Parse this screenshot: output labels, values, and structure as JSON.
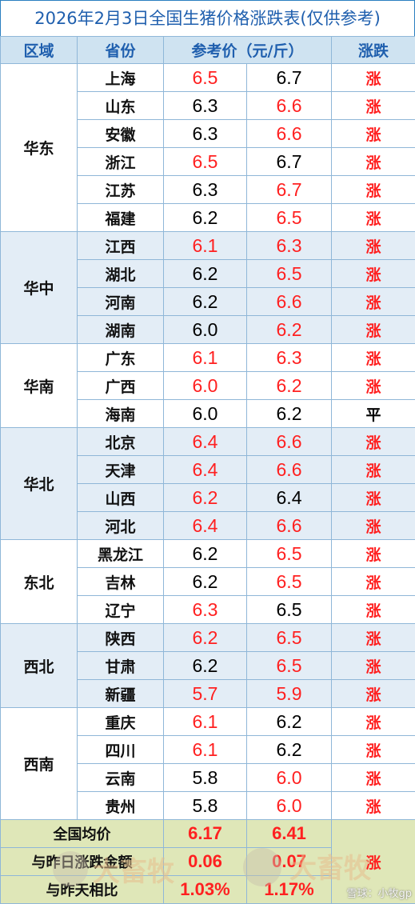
{
  "title": "2026年2月3日全国生猪价格涨跌表(仅供参考)",
  "headers": {
    "region": "区域",
    "province": "省份",
    "price": "参考价（元/斤）",
    "change": "涨跌"
  },
  "colors": {
    "rise": "#ff2020",
    "flat": "#000000",
    "header_bg": "#cfe3f1",
    "title": "#1f5fae",
    "summary_bg": "#dfe7b8"
  },
  "groups": [
    {
      "region": "华东",
      "rows": [
        {
          "province": "上海",
          "prev": "6.5",
          "prev_red": true,
          "curr": "6.7",
          "curr_red": false,
          "change": "涨"
        },
        {
          "province": "山东",
          "prev": "6.3",
          "prev_red": false,
          "curr": "6.6",
          "curr_red": true,
          "change": "涨"
        },
        {
          "province": "安徽",
          "prev": "6.3",
          "prev_red": false,
          "curr": "6.6",
          "curr_red": true,
          "change": "涨"
        },
        {
          "province": "浙江",
          "prev": "6.5",
          "prev_red": true,
          "curr": "6.7",
          "curr_red": false,
          "change": "涨"
        },
        {
          "province": "江苏",
          "prev": "6.3",
          "prev_red": false,
          "curr": "6.7",
          "curr_red": true,
          "change": "涨"
        },
        {
          "province": "福建",
          "prev": "6.2",
          "prev_red": false,
          "curr": "6.5",
          "curr_red": true,
          "change": "涨"
        }
      ]
    },
    {
      "region": "华中",
      "rows": [
        {
          "province": "江西",
          "prev": "6.1",
          "prev_red": true,
          "curr": "6.3",
          "curr_red": true,
          "change": "涨"
        },
        {
          "province": "湖北",
          "prev": "6.2",
          "prev_red": false,
          "curr": "6.5",
          "curr_red": true,
          "change": "涨"
        },
        {
          "province": "河南",
          "prev": "6.2",
          "prev_red": false,
          "curr": "6.6",
          "curr_red": true,
          "change": "涨"
        },
        {
          "province": "湖南",
          "prev": "6.0",
          "prev_red": false,
          "curr": "6.2",
          "curr_red": true,
          "change": "涨"
        }
      ]
    },
    {
      "region": "华南",
      "rows": [
        {
          "province": "广东",
          "prev": "6.1",
          "prev_red": true,
          "curr": "6.3",
          "curr_red": true,
          "change": "涨"
        },
        {
          "province": "广西",
          "prev": "6.0",
          "prev_red": true,
          "curr": "6.2",
          "curr_red": true,
          "change": "涨"
        },
        {
          "province": "海南",
          "prev": "6.0",
          "prev_red": false,
          "curr": "6.2",
          "curr_red": false,
          "change": "平"
        }
      ]
    },
    {
      "region": "华北",
      "rows": [
        {
          "province": "北京",
          "prev": "6.4",
          "prev_red": true,
          "curr": "6.6",
          "curr_red": true,
          "change": "涨"
        },
        {
          "province": "天津",
          "prev": "6.4",
          "prev_red": true,
          "curr": "6.6",
          "curr_red": true,
          "change": "涨"
        },
        {
          "province": "山西",
          "prev": "6.2",
          "prev_red": true,
          "curr": "6.4",
          "curr_red": false,
          "change": "涨"
        },
        {
          "province": "河北",
          "prev": "6.4",
          "prev_red": true,
          "curr": "6.6",
          "curr_red": true,
          "change": "涨"
        }
      ]
    },
    {
      "region": "东北",
      "rows": [
        {
          "province": "黑龙江",
          "prev": "6.2",
          "prev_red": false,
          "curr": "6.5",
          "curr_red": true,
          "change": "涨"
        },
        {
          "province": "吉林",
          "prev": "6.2",
          "prev_red": false,
          "curr": "6.5",
          "curr_red": true,
          "change": "涨"
        },
        {
          "province": "辽宁",
          "prev": "6.3",
          "prev_red": true,
          "curr": "6.5",
          "curr_red": false,
          "change": "涨"
        }
      ]
    },
    {
      "region": "西北",
      "rows": [
        {
          "province": "陕西",
          "prev": "6.2",
          "prev_red": true,
          "curr": "6.5",
          "curr_red": true,
          "change": "涨"
        },
        {
          "province": "甘肃",
          "prev": "6.2",
          "prev_red": false,
          "curr": "6.5",
          "curr_red": true,
          "change": "涨"
        },
        {
          "province": "新疆",
          "prev": "5.7",
          "prev_red": true,
          "curr": "5.9",
          "curr_red": true,
          "change": "涨"
        }
      ]
    },
    {
      "region": "西南",
      "rows": [
        {
          "province": "重庆",
          "prev": "6.1",
          "prev_red": true,
          "curr": "6.2",
          "curr_red": false,
          "change": "涨"
        },
        {
          "province": "四川",
          "prev": "6.1",
          "prev_red": true,
          "curr": "6.2",
          "curr_red": false,
          "change": "涨"
        },
        {
          "province": "云南",
          "prev": "5.8",
          "prev_red": false,
          "curr": "6.0",
          "curr_red": true,
          "change": "涨"
        },
        {
          "province": "贵州",
          "prev": "5.8",
          "prev_red": false,
          "curr": "6.0",
          "curr_red": true,
          "change": "涨"
        }
      ]
    }
  ],
  "summary": {
    "avg_label": "全国均价",
    "avg_prev": "6.17",
    "avg_curr": "6.41",
    "diff_label": "与昨日涨跌金额",
    "diff_prev": "0.06",
    "diff_curr": "0.07",
    "pct_label": "与昨天相比",
    "pct_prev": "1.03%",
    "pct_curr": "1.17%",
    "change": "涨"
  },
  "watermark": {
    "text": "大畜牧",
    "credit": "雪球：小牧gp"
  }
}
